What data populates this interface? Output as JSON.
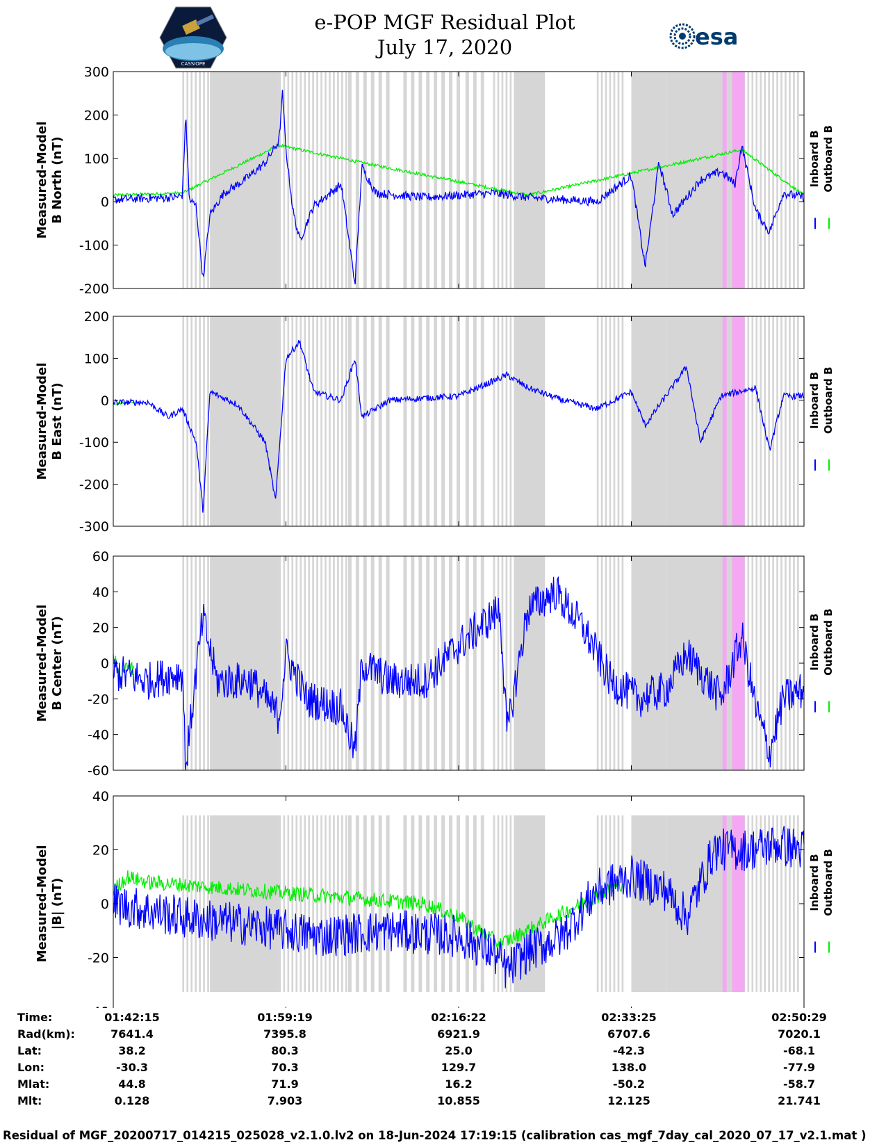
{
  "header": {
    "title_line1": "e-POP MGF Residual Plot",
    "title_line2": "July 17, 2020",
    "left_logo": "cassiope-mission-logo",
    "left_logo_text": "CASSIOPE",
    "right_logo": "esa-logo",
    "right_logo_text": "esa"
  },
  "colors": {
    "inboard": "#0000ff",
    "outboard": "#00ee00",
    "grey_band": "#d6d6d6",
    "pink_band": "#f4a8f4"
  },
  "chart_data": [
    {
      "type": "line",
      "ylabel_line1": "Measured-Model",
      "ylabel_line2": "B North (nT)",
      "ylim": [
        -200,
        300
      ],
      "yticks": [
        "300",
        "200",
        "100",
        "0",
        "-100",
        "-200"
      ],
      "legend": [
        "Inboard B",
        "Outboard B"
      ],
      "grid": false,
      "series": [
        {
          "name": "Inboard B",
          "color": "#0000ff",
          "points": [
            [
              0,
              5
            ],
            [
              0.05,
              8
            ],
            [
              0.09,
              10
            ],
            [
              0.1,
              15
            ],
            [
              0.105,
              200
            ],
            [
              0.11,
              5
            ],
            [
              0.12,
              -10
            ],
            [
              0.13,
              -180
            ],
            [
              0.14,
              -30
            ],
            [
              0.16,
              20
            ],
            [
              0.19,
              50
            ],
            [
              0.22,
              90
            ],
            [
              0.24,
              140
            ],
            [
              0.245,
              250
            ],
            [
              0.25,
              120
            ],
            [
              0.26,
              -20
            ],
            [
              0.27,
              -90
            ],
            [
              0.29,
              -10
            ],
            [
              0.33,
              40
            ],
            [
              0.35,
              -190
            ],
            [
              0.36,
              80
            ],
            [
              0.38,
              20
            ],
            [
              0.45,
              10
            ],
            [
              0.55,
              20
            ],
            [
              0.6,
              10
            ],
            [
              0.7,
              0
            ],
            [
              0.75,
              60
            ],
            [
              0.77,
              -150
            ],
            [
              0.79,
              90
            ],
            [
              0.81,
              -30
            ],
            [
              0.85,
              50
            ],
            [
              0.88,
              70
            ],
            [
              0.9,
              40
            ],
            [
              0.91,
              130
            ],
            [
              0.93,
              -20
            ],
            [
              0.95,
              -70
            ],
            [
              0.97,
              20
            ],
            [
              1,
              10
            ]
          ]
        },
        {
          "name": "Outboard B",
          "color": "#00ee00",
          "points": [
            [
              0,
              15
            ],
            [
              0.1,
              20
            ],
            [
              0.24,
              130
            ],
            [
              0.36,
              90
            ],
            [
              0.6,
              15
            ],
            [
              0.91,
              120
            ],
            [
              1,
              15
            ]
          ]
        }
      ]
    },
    {
      "type": "line",
      "ylabel_line1": "Measured-Model",
      "ylabel_line2": "B East (nT)",
      "ylim": [
        -300,
        200
      ],
      "yticks": [
        "200",
        "100",
        "0",
        "-100",
        "-200",
        "-300"
      ],
      "legend": [
        "Inboard B",
        "Outboard B"
      ],
      "grid": false,
      "series": [
        {
          "name": "Inboard B",
          "color": "#0000ff",
          "points": [
            [
              0,
              -5
            ],
            [
              0.05,
              -5
            ],
            [
              0.08,
              -40
            ],
            [
              0.1,
              -20
            ],
            [
              0.12,
              -100
            ],
            [
              0.13,
              -265
            ],
            [
              0.14,
              20
            ],
            [
              0.18,
              -10
            ],
            [
              0.22,
              -100
            ],
            [
              0.235,
              -240
            ],
            [
              0.25,
              100
            ],
            [
              0.27,
              140
            ],
            [
              0.29,
              20
            ],
            [
              0.33,
              0
            ],
            [
              0.35,
              100
            ],
            [
              0.36,
              -40
            ],
            [
              0.4,
              0
            ],
            [
              0.5,
              10
            ],
            [
              0.57,
              60
            ],
            [
              0.6,
              30
            ],
            [
              0.65,
              0
            ],
            [
              0.7,
              -20
            ],
            [
              0.75,
              20
            ],
            [
              0.77,
              -60
            ],
            [
              0.8,
              10
            ],
            [
              0.83,
              80
            ],
            [
              0.85,
              -100
            ],
            [
              0.88,
              10
            ],
            [
              0.93,
              30
            ],
            [
              0.95,
              -120
            ],
            [
              0.97,
              10
            ],
            [
              1,
              10
            ]
          ]
        },
        {
          "name": "Outboard B",
          "color": "#00ee00",
          "points": [
            [
              0,
              -10
            ],
            [
              0.02,
              -5
            ],
            [
              0.04,
              -5
            ]
          ]
        }
      ]
    },
    {
      "type": "line",
      "ylabel_line1": "Measured-Model",
      "ylabel_line2": "B Center (nT)",
      "ylim": [
        -60,
        60
      ],
      "yticks": [
        "60",
        "40",
        "20",
        "0",
        "-20",
        "-40",
        "-60"
      ],
      "legend": [
        "Inboard B",
        "Outboard B"
      ],
      "grid": false,
      "series": [
        {
          "name": "Inboard B",
          "color": "#0000ff",
          "points": [
            [
              0,
              -5
            ],
            [
              0.05,
              -10
            ],
            [
              0.1,
              -5
            ],
            [
              0.105,
              -58
            ],
            [
              0.12,
              -5
            ],
            [
              0.13,
              25
            ],
            [
              0.15,
              -10
            ],
            [
              0.2,
              -10
            ],
            [
              0.24,
              -30
            ],
            [
              0.25,
              5
            ],
            [
              0.28,
              -20
            ],
            [
              0.33,
              -25
            ],
            [
              0.35,
              -50
            ],
            [
              0.36,
              0
            ],
            [
              0.4,
              -10
            ],
            [
              0.45,
              -10
            ],
            [
              0.5,
              10
            ],
            [
              0.56,
              30
            ],
            [
              0.57,
              -40
            ],
            [
              0.6,
              30
            ],
            [
              0.64,
              40
            ],
            [
              0.68,
              20
            ],
            [
              0.72,
              -10
            ],
            [
              0.76,
              -20
            ],
            [
              0.8,
              -15
            ],
            [
              0.83,
              5
            ],
            [
              0.88,
              -20
            ],
            [
              0.91,
              15
            ],
            [
              0.93,
              -25
            ],
            [
              0.95,
              -50
            ],
            [
              0.97,
              -20
            ],
            [
              1,
              -15
            ]
          ]
        },
        {
          "name": "Outboard B",
          "color": "#00ee00",
          "points": [
            [
              0,
              5
            ],
            [
              0.01,
              -10
            ],
            [
              0.02,
              0
            ],
            [
              0.03,
              -5
            ]
          ]
        }
      ]
    },
    {
      "type": "line",
      "ylabel_line1": "Measured-Model",
      "ylabel_line2": "|B| (nT)",
      "ylim": [
        -40,
        40
      ],
      "yticks": [
        "40",
        "20",
        "0",
        "-20",
        "-40"
      ],
      "legend": [
        "Inboard B",
        "Outboard B"
      ],
      "grid": false,
      "series": [
        {
          "name": "Inboard B",
          "color": "#0000ff",
          "points": [
            [
              0,
              0
            ],
            [
              0.1,
              -5
            ],
            [
              0.2,
              -8
            ],
            [
              0.3,
              -12
            ],
            [
              0.4,
              -10
            ],
            [
              0.5,
              -12
            ],
            [
              0.55,
              -18
            ],
            [
              0.57,
              -25
            ],
            [
              0.6,
              -18
            ],
            [
              0.65,
              -12
            ],
            [
              0.7,
              5
            ],
            [
              0.75,
              10
            ],
            [
              0.8,
              5
            ],
            [
              0.83,
              -5
            ],
            [
              0.87,
              20
            ],
            [
              0.92,
              20
            ],
            [
              0.96,
              22
            ],
            [
              1,
              20
            ]
          ]
        },
        {
          "name": "Outboard B",
          "color": "#00ee00",
          "points": [
            [
              0,
              5
            ],
            [
              0.02,
              10
            ],
            [
              0.05,
              8
            ],
            [
              0.45,
              0
            ],
            [
              0.5,
              -5
            ],
            [
              0.56,
              -15
            ],
            [
              0.74,
              8
            ]
          ]
        }
      ]
    }
  ],
  "x_axis": {
    "ticks": [
      "01:42:15",
      "01:59:19",
      "02:16:22",
      "02:33:25",
      "02:50:29"
    ],
    "tick_fractions": [
      0,
      0.25,
      0.5,
      0.75,
      1
    ]
  },
  "info_rows": [
    {
      "label": "Time:",
      "values": [
        "01:42:15",
        "01:59:19",
        "02:16:22",
        "02:33:25",
        "02:50:29"
      ]
    },
    {
      "label": "Rad(km):",
      "values": [
        "7641.4",
        "7395.8",
        "6921.9",
        "6707.6",
        "7020.1"
      ]
    },
    {
      "label": "Lat:",
      "values": [
        "38.2",
        "80.3",
        "25.0",
        "-42.3",
        "-68.1"
      ]
    },
    {
      "label": "Lon:",
      "values": [
        "-30.3",
        "70.3",
        "129.7",
        "138.0",
        "-77.9"
      ]
    },
    {
      "label": "Mlat:",
      "values": [
        "44.8",
        "71.9",
        "16.2",
        "-50.2",
        "-58.7"
      ]
    },
    {
      "label": "Mlt:",
      "values": [
        "0.128",
        "7.903",
        "10.855",
        "12.125",
        "21.741"
      ]
    }
  ],
  "footer": "Residual of MGF_20200717_014215_025028_v2.1.0.lv2 on 18-Jun-2024 17:19:15 (calibration cas_mgf_7day_cal_2020_07_17_v2.1.mat )"
}
